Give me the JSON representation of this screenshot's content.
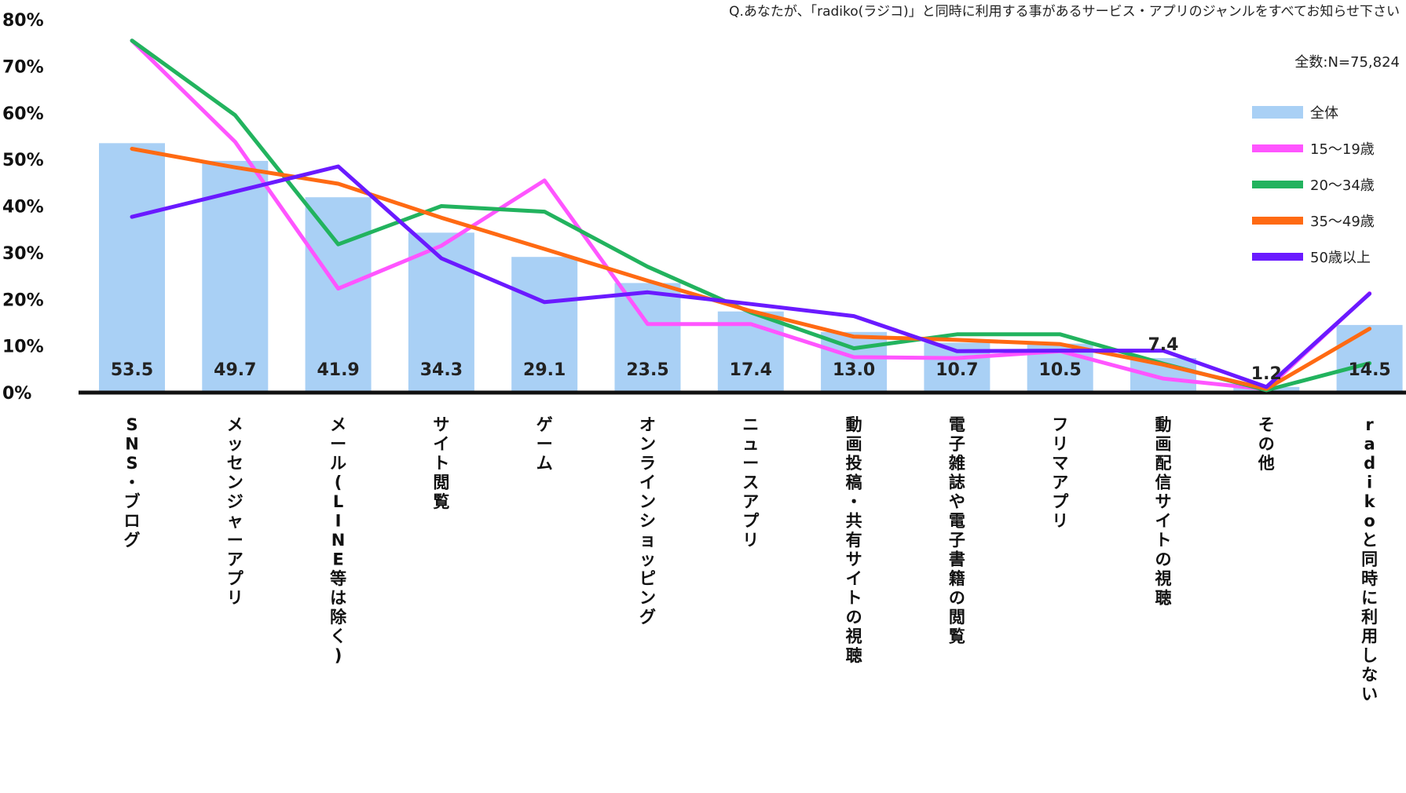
{
  "chart_data": {
    "type": "bar",
    "title": "Q.あなたが、「radiko(ラジコ)」と同時に利用する事があるサービス・アプリのジャンルをすべてお知らせ下さい",
    "total_label": "全数:N=75,824",
    "ylim": [
      0,
      80
    ],
    "yticks": [
      "0%",
      "10%",
      "20%",
      "30%",
      "40%",
      "50%",
      "60%",
      "70%",
      "80%"
    ],
    "categories": [
      "SNS・ブログ",
      "メッセンジャーアプリ",
      "メール(LINE等は除く)",
      "サイト閲覧",
      "ゲーム",
      "オンラインショッピング",
      "ニュースアプリ",
      "動画投稿・共有サイトの視聴",
      "電子雑誌や電子書籍の閲覧",
      "フリマアプリ",
      "動画配信サイトの視聴",
      "その他",
      "radikoと同時に利用しない"
    ],
    "series": [
      {
        "name": "全体",
        "kind": "bar",
        "color": "#a9d0f5",
        "values": [
          53.5,
          49.7,
          41.9,
          34.3,
          29.1,
          23.5,
          17.4,
          13.0,
          10.7,
          10.5,
          7.4,
          1.2,
          14.5
        ],
        "labels": [
          "53.5",
          "49.7",
          "41.9",
          "34.3",
          "29.1",
          "23.5",
          "17.4",
          "13.0",
          "10.7",
          "10.5",
          "7.4",
          "1.2",
          "14.5"
        ]
      },
      {
        "name": "15～19歳",
        "kind": "line",
        "color": "#ff55ff",
        "values": [
          75.5,
          53.8,
          22.3,
          31.5,
          45.5,
          14.7,
          14.7,
          7.6,
          7.4,
          8.9,
          3.0,
          0.7,
          21.3
        ]
      },
      {
        "name": "20～34歳",
        "kind": "line",
        "color": "#22b35e",
        "values": [
          75.5,
          59.5,
          31.8,
          40.0,
          38.8,
          27.0,
          17.2,
          9.5,
          12.5,
          12.5,
          6.2,
          0.5,
          6.3
        ]
      },
      {
        "name": "35～49歳",
        "kind": "line",
        "color": "#ff6a13",
        "values": [
          52.3,
          48.3,
          44.8,
          37.5,
          30.8,
          24.0,
          17.5,
          12.0,
          11.3,
          10.4,
          6.0,
          0.8,
          13.7
        ]
      },
      {
        "name": "50歳以上",
        "kind": "line",
        "color": "#6a1aff",
        "values": [
          37.7,
          43.1,
          48.5,
          28.8,
          19.4,
          21.5,
          19.0,
          16.4,
          8.9,
          9.0,
          9.0,
          1.2,
          21.2
        ]
      }
    ]
  }
}
